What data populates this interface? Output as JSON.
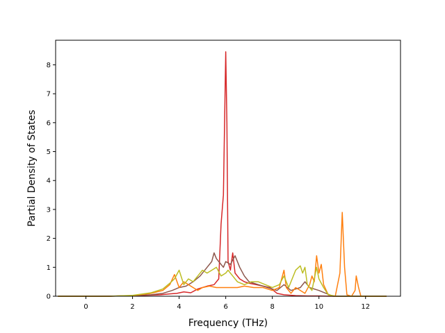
{
  "chart_data": {
    "type": "line",
    "title": "",
    "xlabel": "Frequency (THz)",
    "ylabel": "Partial Density of States",
    "xlim": [
      -1.3,
      13.5
    ],
    "ylim": [
      0,
      8.85
    ],
    "xticks": [
      0,
      2,
      4,
      6,
      8,
      10,
      12
    ],
    "yticks": [
      0,
      1,
      2,
      3,
      4,
      5,
      6,
      7,
      8
    ],
    "grid": false,
    "legend": "none",
    "series": [
      {
        "color": "#d62728",
        "points": [
          [
            -1.2,
            0
          ],
          [
            0.5,
            0
          ],
          [
            1.5,
            0.01
          ],
          [
            2.5,
            0.03
          ],
          [
            3.2,
            0.05
          ],
          [
            3.6,
            0.08
          ],
          [
            3.9,
            0.1
          ],
          [
            4.2,
            0.15
          ],
          [
            4.5,
            0.12
          ],
          [
            4.8,
            0.25
          ],
          [
            5.0,
            0.3
          ],
          [
            5.2,
            0.35
          ],
          [
            5.5,
            0.4
          ],
          [
            5.7,
            0.6
          ],
          [
            5.8,
            2.5
          ],
          [
            5.9,
            3.5
          ],
          [
            6.0,
            8.45
          ],
          [
            6.05,
            6.0
          ],
          [
            6.1,
            1.2
          ],
          [
            6.2,
            0.9
          ],
          [
            6.3,
            1.5
          ],
          [
            6.4,
            0.8
          ],
          [
            6.6,
            0.6
          ],
          [
            6.8,
            0.5
          ],
          [
            7.0,
            0.45
          ],
          [
            7.3,
            0.4
          ],
          [
            7.6,
            0.35
          ],
          [
            7.9,
            0.3
          ],
          [
            8.2,
            0.1
          ],
          [
            8.5,
            0.05
          ],
          [
            9.0,
            0.02
          ],
          [
            9.5,
            0.01
          ],
          [
            10.0,
            0.01
          ],
          [
            10.5,
            0
          ],
          [
            12.9,
            0
          ]
        ]
      },
      {
        "color": "#8c564b",
        "points": [
          [
            -1.2,
            0
          ],
          [
            1.0,
            0
          ],
          [
            2.0,
            0.02
          ],
          [
            2.8,
            0.05
          ],
          [
            3.3,
            0.1
          ],
          [
            3.7,
            0.2
          ],
          [
            4.0,
            0.3
          ],
          [
            4.3,
            0.35
          ],
          [
            4.6,
            0.5
          ],
          [
            4.9,
            0.7
          ],
          [
            5.2,
            1.0
          ],
          [
            5.4,
            1.2
          ],
          [
            5.5,
            1.5
          ],
          [
            5.6,
            1.3
          ],
          [
            5.8,
            1.1
          ],
          [
            5.9,
            1.0
          ],
          [
            6.0,
            1.2
          ],
          [
            6.2,
            1.1
          ],
          [
            6.4,
            1.4
          ],
          [
            6.6,
            1.0
          ],
          [
            6.8,
            0.7
          ],
          [
            7.0,
            0.5
          ],
          [
            7.4,
            0.4
          ],
          [
            7.8,
            0.3
          ],
          [
            8.2,
            0.2
          ],
          [
            8.5,
            0.4
          ],
          [
            8.8,
            0.2
          ],
          [
            9.2,
            0.3
          ],
          [
            9.4,
            0.5
          ],
          [
            9.6,
            0.3
          ],
          [
            10.0,
            0.2
          ],
          [
            10.3,
            0.1
          ],
          [
            10.6,
            0
          ],
          [
            12.9,
            0
          ]
        ]
      },
      {
        "color": "#ff7f0e",
        "points": [
          [
            -1.2,
            0
          ],
          [
            1.0,
            0
          ],
          [
            2.0,
            0.02
          ],
          [
            2.8,
            0.1
          ],
          [
            3.3,
            0.2
          ],
          [
            3.6,
            0.4
          ],
          [
            3.8,
            0.75
          ],
          [
            4.0,
            0.3
          ],
          [
            4.2,
            0.5
          ],
          [
            4.4,
            0.4
          ],
          [
            4.6,
            0.3
          ],
          [
            4.8,
            0.2
          ],
          [
            5.0,
            0.3
          ],
          [
            5.3,
            0.35
          ],
          [
            5.6,
            0.3
          ],
          [
            5.9,
            0.3
          ],
          [
            6.2,
            0.3
          ],
          [
            6.5,
            0.3
          ],
          [
            6.8,
            0.35
          ],
          [
            7.2,
            0.3
          ],
          [
            7.6,
            0.3
          ],
          [
            8.0,
            0.2
          ],
          [
            8.3,
            0.3
          ],
          [
            8.5,
            0.9
          ],
          [
            8.6,
            0.3
          ],
          [
            8.8,
            0.1
          ],
          [
            9.0,
            0.3
          ],
          [
            9.2,
            0.2
          ],
          [
            9.4,
            0.1
          ],
          [
            9.6,
            0.4
          ],
          [
            9.7,
            0.7
          ],
          [
            9.8,
            0.5
          ],
          [
            9.9,
            1.4
          ],
          [
            10.0,
            0.8
          ],
          [
            10.1,
            1.1
          ],
          [
            10.2,
            0.4
          ],
          [
            10.4,
            0.05
          ],
          [
            10.7,
            0
          ],
          [
            10.9,
            0.8
          ],
          [
            11.0,
            2.9
          ],
          [
            11.1,
            1.0
          ],
          [
            11.2,
            0.05
          ],
          [
            11.4,
            0
          ],
          [
            11.55,
            0.2
          ],
          [
            11.6,
            0.7
          ],
          [
            11.7,
            0.3
          ],
          [
            11.8,
            0
          ],
          [
            12.9,
            0
          ]
        ]
      },
      {
        "color": "#bcbd22",
        "points": [
          [
            -1.2,
            0
          ],
          [
            1.0,
            0
          ],
          [
            2.0,
            0.03
          ],
          [
            2.8,
            0.12
          ],
          [
            3.3,
            0.25
          ],
          [
            3.6,
            0.45
          ],
          [
            3.8,
            0.6
          ],
          [
            4.0,
            0.9
          ],
          [
            4.2,
            0.4
          ],
          [
            4.4,
            0.6
          ],
          [
            4.6,
            0.5
          ],
          [
            4.8,
            0.7
          ],
          [
            5.0,
            0.9
          ],
          [
            5.2,
            0.8
          ],
          [
            5.4,
            0.9
          ],
          [
            5.6,
            1.0
          ],
          [
            5.8,
            0.7
          ],
          [
            6.0,
            0.8
          ],
          [
            6.1,
            0.9
          ],
          [
            6.3,
            0.7
          ],
          [
            6.5,
            0.5
          ],
          [
            6.8,
            0.4
          ],
          [
            7.1,
            0.5
          ],
          [
            7.4,
            0.5
          ],
          [
            7.7,
            0.4
          ],
          [
            8.0,
            0.3
          ],
          [
            8.3,
            0.4
          ],
          [
            8.5,
            0.7
          ],
          [
            8.7,
            0.3
          ],
          [
            9.0,
            0.9
          ],
          [
            9.2,
            1.05
          ],
          [
            9.3,
            0.8
          ],
          [
            9.4,
            1.0
          ],
          [
            9.5,
            0.4
          ],
          [
            9.7,
            0.2
          ],
          [
            9.9,
            1.0
          ],
          [
            10.0,
            0.6
          ],
          [
            10.2,
            0.3
          ],
          [
            10.4,
            0.05
          ],
          [
            10.7,
            0
          ],
          [
            12.9,
            0
          ]
        ]
      }
    ]
  }
}
